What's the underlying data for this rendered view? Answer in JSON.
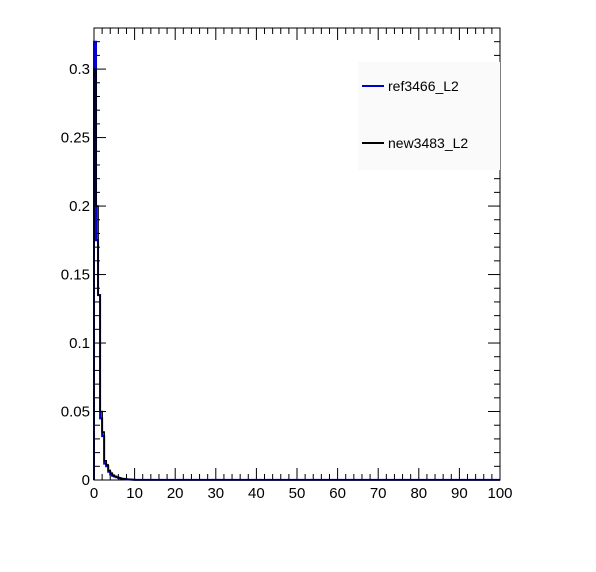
{
  "chart_data": {
    "type": "line",
    "title": "",
    "xlabel": "",
    "ylabel": "",
    "xlim": [
      0,
      100
    ],
    "ylim": [
      0,
      0.33
    ],
    "grid": false,
    "legend_position": "top-right",
    "x_ticks": [
      0,
      10,
      20,
      30,
      40,
      50,
      60,
      70,
      80,
      90,
      100
    ],
    "x_tick_labels": [
      "0",
      "10",
      "20",
      "30",
      "40",
      "50",
      "60",
      "70",
      "80",
      "90",
      "100"
    ],
    "y_ticks": [
      0,
      0.05,
      0.1,
      0.15,
      0.2,
      0.25,
      0.3
    ],
    "y_tick_labels": [
      "0",
      "0.05",
      "0.1",
      "0.15",
      "0.2",
      "0.25",
      "0.3"
    ],
    "bin_edges": [
      0,
      0.5,
      1,
      1.5,
      2,
      2.5,
      3,
      3.5,
      4,
      4.5,
      5,
      5.5,
      6,
      6.5,
      7,
      7.5,
      8,
      8.5,
      9,
      9.5,
      10,
      100
    ],
    "series": [
      {
        "name": "ref3466_L2",
        "color": "#0000cc",
        "values": [
          0.32,
          0.175,
          0.135,
          0.045,
          0.032,
          0.012,
          0.01,
          0.006,
          0.004,
          0.003,
          0.0025,
          0.002,
          0.0015,
          0.001,
          0.0008,
          0.0006,
          0.0005,
          0.0004,
          0.0003,
          0.0002,
          0.0001
        ]
      },
      {
        "name": "new3483_L2",
        "color": "#000000",
        "values": [
          0.3,
          0.2,
          0.135,
          0.05,
          0.035,
          0.014,
          0.011,
          0.007,
          0.005,
          0.0035,
          0.0025,
          0.002,
          0.0015,
          0.001,
          0.0008,
          0.0006,
          0.0005,
          0.0004,
          0.0003,
          0.0002,
          0.0001
        ]
      }
    ]
  }
}
